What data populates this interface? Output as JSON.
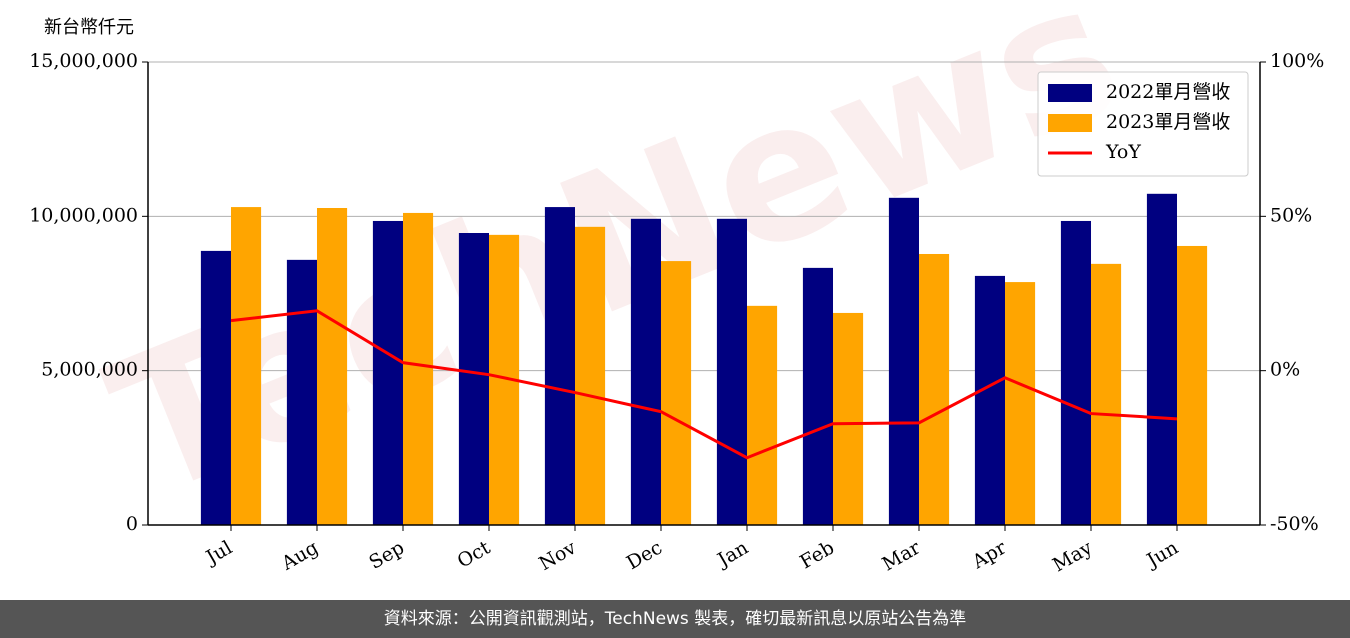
{
  "chart_data": {
    "type": "bar-line",
    "y_label": "新台幣仟元",
    "watermark": "TechNews",
    "categories": [
      "Jul",
      "Aug",
      "Sep",
      "Oct",
      "Nov",
      "Dec",
      "Jan",
      "Feb",
      "Mar",
      "Apr",
      "May",
      "Jun"
    ],
    "series": [
      {
        "name": "2022單月營收",
        "type": "bar",
        "color": "#000080",
        "values": [
          8880000,
          8590000,
          9850000,
          9460000,
          10300000,
          9920000,
          9920000,
          8330000,
          10600000,
          8070000,
          9850000,
          10730000
        ]
      },
      {
        "name": "2023單月營收",
        "type": "bar",
        "color": "#ffa500",
        "values": [
          10300000,
          10270000,
          10110000,
          9400000,
          9660000,
          8550000,
          7100000,
          6870000,
          8780000,
          7870000,
          8460000,
          9040000
        ]
      },
      {
        "name": "YoY",
        "type": "line",
        "axis": "y2",
        "color": "#ff0000",
        "values": [
          16.2,
          19.4,
          2.6,
          -1.3,
          -7.1,
          -13.3,
          -28.2,
          -17.2,
          -16.9,
          -2.3,
          -13.9,
          -15.6
        ]
      }
    ],
    "ylim": [
      0,
      15000000
    ],
    "yticks": [
      0,
      {
        "value": 5000000,
        "label": "5,000,000"
      },
      {
        "value": 10000000,
        "label": "10,000,000"
      },
      {
        "value": 15000000,
        "label": "15,000,000"
      }
    ],
    "y2lim": [
      -50,
      100
    ],
    "y2ticks": [
      {
        "value": -50,
        "label": "-50%"
      },
      {
        "value": 0,
        "label": "0%"
      },
      {
        "value": 50,
        "label": "50%"
      },
      {
        "value": 100,
        "label": "100%"
      }
    ],
    "grid": true,
    "legend": "upper right"
  },
  "footer": "資料來源：公開資訊觀測站，TechNews 製表，確切最新訊息以原站公告為準"
}
